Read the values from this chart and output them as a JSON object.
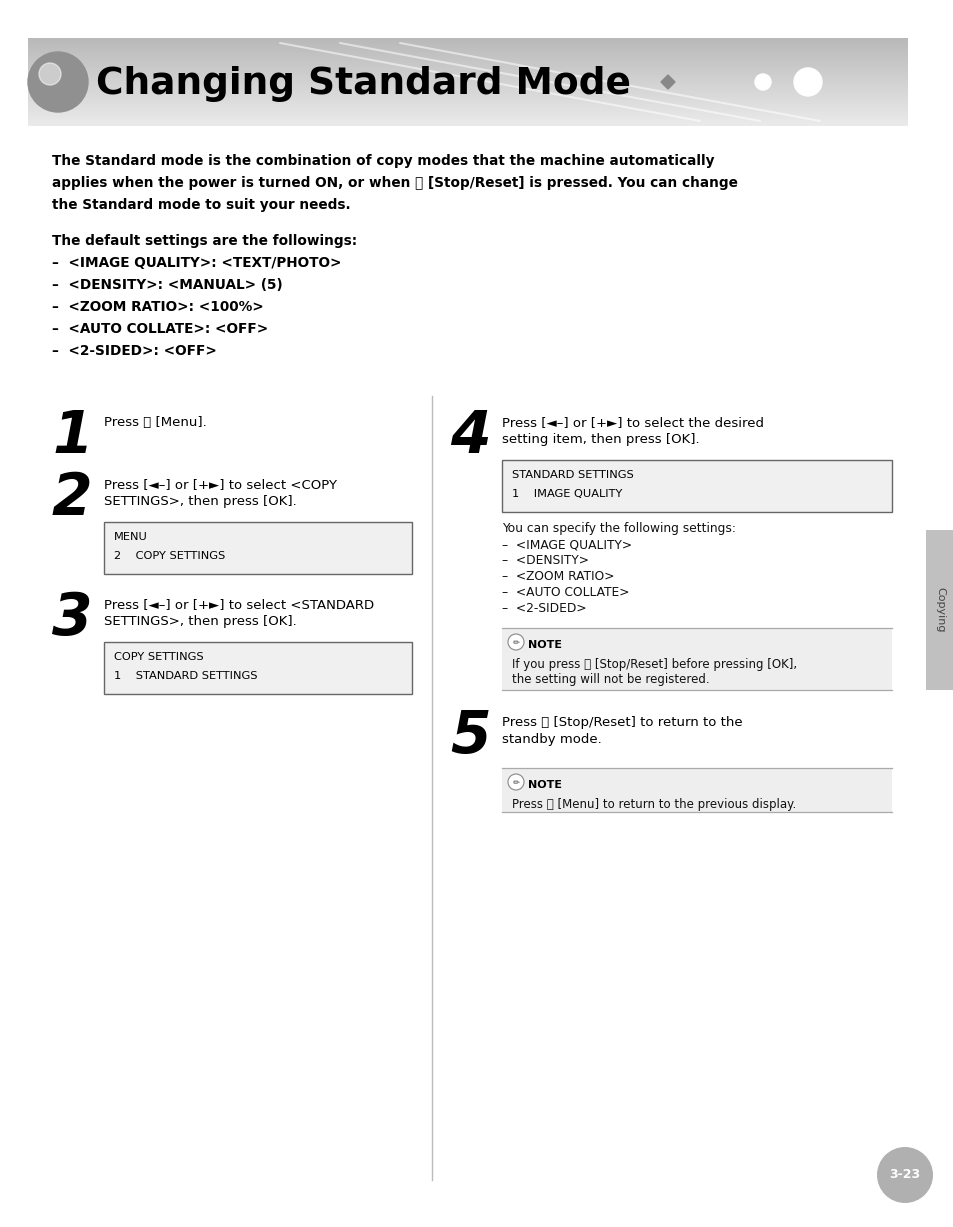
{
  "title": "Changing Standard Mode",
  "bg_color": "#ffffff",
  "page_number": "3-23",
  "intro_bold_lines": [
    "The Standard mode is the combination of copy modes that the machine automatically",
    "applies when the power is turned ON, or when ⓘ [Stop/Reset] is pressed. You can change",
    "the Standard mode to suit your needs."
  ],
  "defaults_title": "The default settings are the followings:",
  "defaults_list": [
    "–  <IMAGE QUALITY>: <TEXT/PHOTO>",
    "–  <DENSITY>: <MANUAL> (5)",
    "–  <ZOOM RATIO>: <100%>",
    "–  <AUTO COLLATE>: <OFF>",
    "–  <2-SIDED>: <OFF>"
  ],
  "step1_num": "1",
  "step1_text": "Press Ⓜ [Menu].",
  "step2_num": "2",
  "step2_text_lines": [
    "Press [◄–] or [+►] to select <COPY",
    "SETTINGS>, then press [OK]."
  ],
  "step2_lcd": "MENU\n2    COPY SETTINGS",
  "step3_num": "3",
  "step3_text_lines": [
    "Press [◄–] or [+►] to select <STANDARD",
    "SETTINGS>, then press [OK]."
  ],
  "step3_lcd": "COPY SETTINGS\n1    STANDARD SETTINGS",
  "step4_num": "4",
  "step4_text_lines": [
    "Press [◄–] or [+►] to select the desired",
    "setting item, then press [OK]."
  ],
  "step4_lcd": "STANDARD SETTINGS\n1    IMAGE QUALITY",
  "step4_sub_lines": [
    "You can specify the following settings:",
    "–  <IMAGE QUALITY>",
    "–  <DENSITY>",
    "–  <ZOOM RATIO>",
    "–  <AUTO COLLATE>",
    "–  <2-SIDED>"
  ],
  "note4_lines": [
    "If you press ⓘ [Stop/Reset] before pressing [OK],",
    "the setting will not be registered."
  ],
  "step5_num": "5",
  "step5_text_lines": [
    "Press ⓘ [Stop/Reset] to return to the",
    "standby mode."
  ],
  "note5_line": "Press Ⓜ [Menu] to return to the previous display.",
  "sidebar_text": "Copying",
  "header_gray_top": "#b0b0b0",
  "header_gray_bottom": "#d8d8d8",
  "lcd_bg": "#f0f0f0",
  "lcd_border": "#666666",
  "note_bg": "#eeeeee",
  "note_border": "#aaaaaa",
  "sidebar_gray": "#c0c0c0",
  "page_circle_gray": "#b0b0b0"
}
